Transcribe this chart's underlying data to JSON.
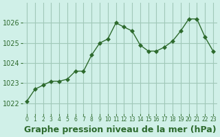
{
  "x": [
    0,
    1,
    2,
    3,
    4,
    5,
    6,
    7,
    8,
    9,
    10,
    11,
    12,
    13,
    14,
    15,
    16,
    17,
    18,
    19,
    20,
    21,
    22,
    23
  ],
  "y": [
    1022.1,
    1022.7,
    1022.9,
    1023.1,
    1023.1,
    1023.2,
    1023.6,
    1023.6,
    1024.4,
    1025.0,
    1025.2,
    1026.0,
    1025.8,
    1025.6,
    1024.9,
    1024.6,
    1024.6,
    1024.8,
    1025.1,
    1025.6,
    1026.2,
    1026.2,
    1025.3,
    1024.6
  ],
  "line_color": "#2d6a2d",
  "marker": "D",
  "marker_size": 3,
  "background_color": "#d0f0e8",
  "grid_color": "#a0c8b8",
  "xlabel": "Graphe pression niveau de la mer (hPa)",
  "xlabel_fontsize": 9,
  "tick_color": "#2d6a2d",
  "yticks": [
    1022,
    1023,
    1024,
    1025,
    1026
  ],
  "ylim": [
    1021.5,
    1027.0
  ],
  "xlim": [
    -0.5,
    23.5
  ],
  "xtick_labels": [
    "0",
    "1",
    "2",
    "3",
    "4",
    "5",
    "6",
    "7",
    "8",
    "9",
    "10",
    "11",
    "12",
    "13",
    "14",
    "15",
    "16",
    "17",
    "18",
    "19",
    "20",
    "21",
    "22",
    "23"
  ]
}
